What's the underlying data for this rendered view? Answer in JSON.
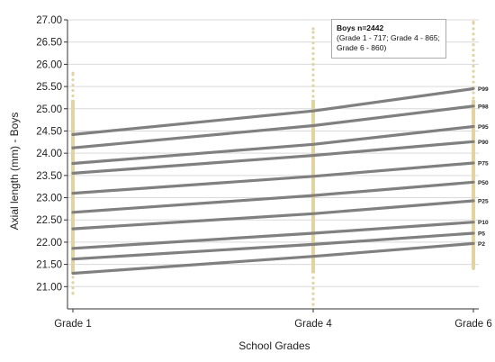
{
  "chart_data": {
    "type": "line",
    "xlabel": "School Grades",
    "ylabel": "Axial length (mm) - Boys",
    "categories": [
      "Grade 1",
      "Grade 4",
      "Grade 6"
    ],
    "ylim": [
      20.5,
      27.0
    ],
    "yticks": [
      "21.00",
      "21.50",
      "22.00",
      "22.50",
      "23.00",
      "23.50",
      "24.00",
      "24.50",
      "25.00",
      "25.50",
      "26.00",
      "26.50",
      "27.00"
    ],
    "grid": true,
    "series": [
      {
        "name": "P99",
        "values": [
          24.42,
          24.95,
          25.45
        ]
      },
      {
        "name": "P98",
        "values": [
          24.12,
          24.62,
          25.06
        ]
      },
      {
        "name": "P95",
        "values": [
          23.77,
          24.2,
          24.6
        ]
      },
      {
        "name": "P90",
        "values": [
          23.55,
          23.95,
          24.26
        ]
      },
      {
        "name": "P75",
        "values": [
          23.1,
          23.48,
          23.78
        ]
      },
      {
        "name": "P50",
        "values": [
          22.67,
          23.05,
          23.35
        ]
      },
      {
        "name": "P25",
        "values": [
          22.3,
          22.64,
          22.93
        ]
      },
      {
        "name": "P10",
        "values": [
          21.86,
          22.2,
          22.45
        ]
      },
      {
        "name": "P5",
        "values": [
          21.62,
          21.95,
          22.2
        ]
      },
      {
        "name": "P2",
        "values": [
          21.3,
          21.68,
          21.97
        ]
      }
    ],
    "scatter_range": [
      {
        "category": "Grade 1",
        "min": 20.85,
        "max": 25.8
      },
      {
        "category": "Grade 4",
        "min": 20.6,
        "max": 26.8
      },
      {
        "category": "Grade 6",
        "min": 21.4,
        "max": 26.95
      }
    ],
    "colors": {
      "lines": "#808080",
      "points": "#e3d49f",
      "grid": "#d9d9d9"
    }
  },
  "legend": {
    "title": "Boys n=2442",
    "line1": "(Grade 1 - 717; Grade 4 - 865;",
    "line2": "Grade 6 - 860)"
  }
}
